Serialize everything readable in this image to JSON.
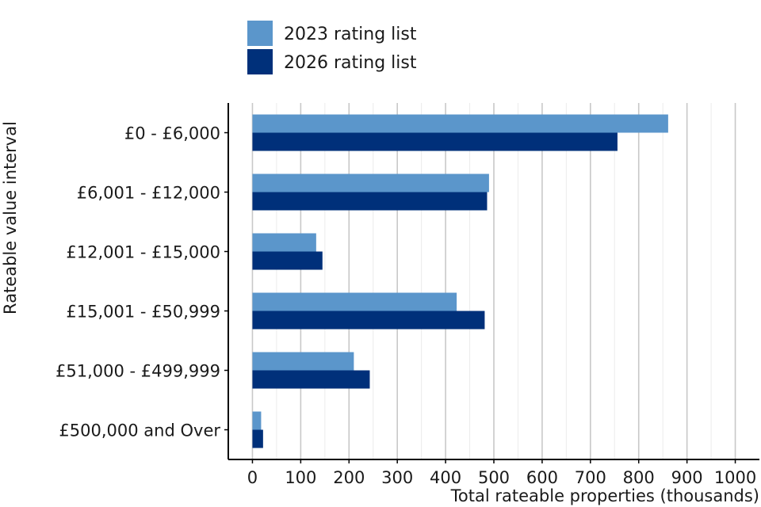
{
  "colors": {
    "series_2023": "#5b96cb",
    "series_2026": "#00307a",
    "grid_major": "#c8c8c8",
    "grid_minor": "#ececec",
    "axis": "#000000"
  },
  "chart_data": {
    "type": "bar",
    "orientation": "horizontal",
    "title": "",
    "xlabel": "Total rateable properties (thousands)",
    "ylabel": "Rateable value interval",
    "categories": [
      "£0 - £6,000",
      "£6,001 - £12,000",
      "£12,001 - £15,000",
      "£15,001 - £50,999",
      "£51,000 - £499,999",
      "£500,000 and Over"
    ],
    "series": [
      {
        "name": "2023 rating list",
        "color": "#5b96cb",
        "values": [
          861,
          490,
          132,
          423,
          210,
          18
        ]
      },
      {
        "name": "2026 rating list",
        "color": "#00307a",
        "values": [
          756,
          486,
          145,
          481,
          243,
          22
        ]
      }
    ],
    "xlim": [
      -50,
      1050
    ],
    "xticks": [
      0,
      100,
      200,
      300,
      400,
      500,
      600,
      700,
      800,
      900,
      1000
    ],
    "legend_position": "top",
    "grid": true
  }
}
